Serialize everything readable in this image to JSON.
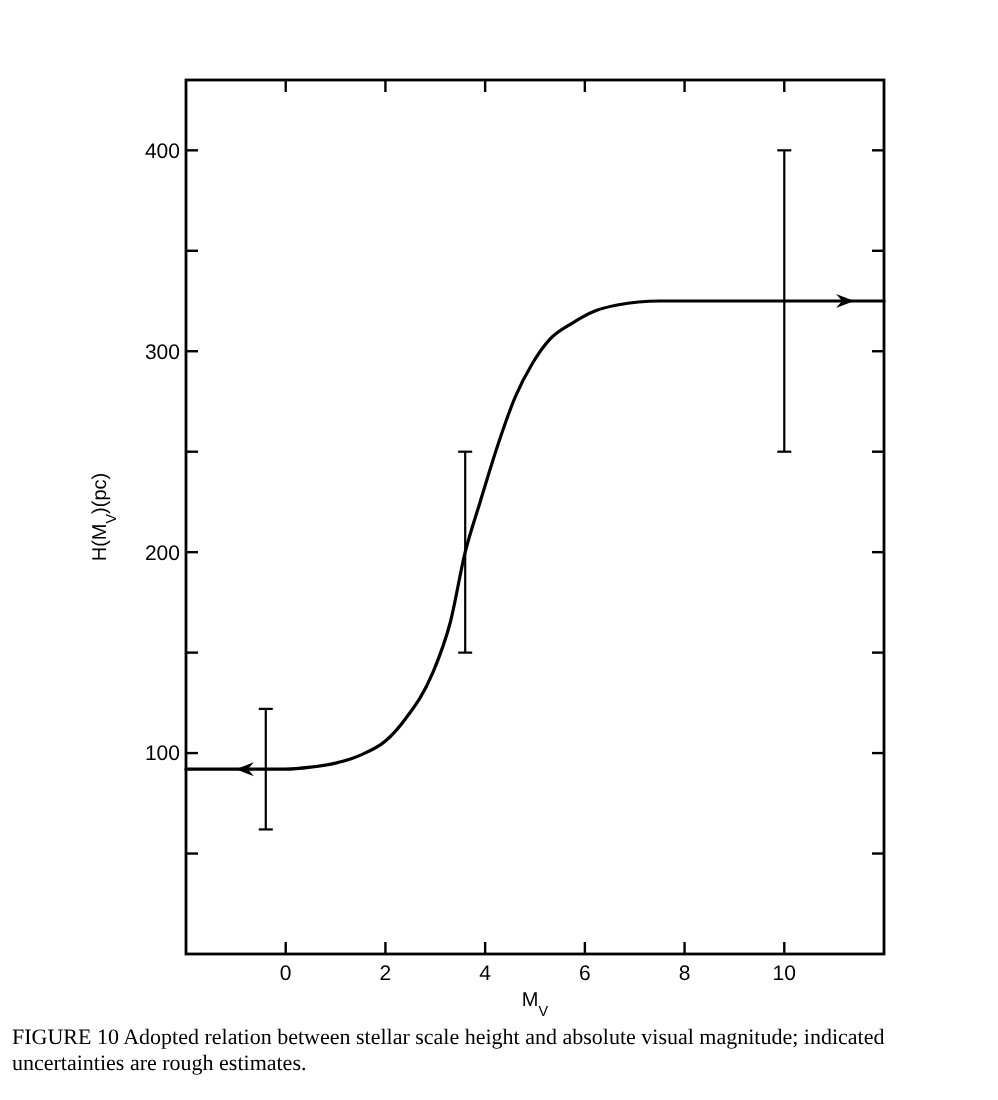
{
  "chart_data": {
    "type": "line",
    "xlabel": "M$_{V}$",
    "ylabel": "H(M$_{V}$)(pc)",
    "annotations": [
      "FIGURE 10 Adopted relation between stellar scale height and absolute visual magnitude; indicated uncertainties are rough estimates."
    ],
    "xlim": [
      -2,
      12
    ],
    "ylim": [
      0,
      435
    ],
    "xticks": [
      0,
      2,
      4,
      6,
      8,
      10
    ],
    "yticks": [
      {
        "value": 50,
        "label": null
      },
      100,
      {
        "value": 150,
        "label": null
      },
      200,
      {
        "value": 250,
        "label": null
      },
      300,
      {
        "value": 350,
        "label": null
      },
      400
    ],
    "series": [
      {
        "color": "#000000",
        "x": [
          -2,
          -1,
          -0.4,
          0,
          0.5,
          1,
          1.5,
          2,
          2.4,
          2.95,
          3.3,
          3.6,
          3.9,
          4.25,
          4.6,
          4.95,
          5.3,
          5.75,
          6.2,
          6.65,
          7.5,
          9,
          10,
          11.4,
          12
        ],
        "values": [
          92,
          92,
          92,
          92,
          93,
          95,
          99,
          106,
          117,
          140,
          165,
          200,
          225,
          253,
          277,
          294,
          306,
          314,
          320,
          323,
          325,
          325,
          325,
          325,
          325
        ],
        "errors": [
          null,
          null,
          30,
          null,
          null,
          null,
          null,
          null,
          null,
          null,
          null,
          50,
          null,
          null,
          null,
          null,
          null,
          null,
          null,
          null,
          null,
          null,
          75,
          null,
          null
        ]
      }
    ],
    "line_style": "solid",
    "grid": false
  }
}
